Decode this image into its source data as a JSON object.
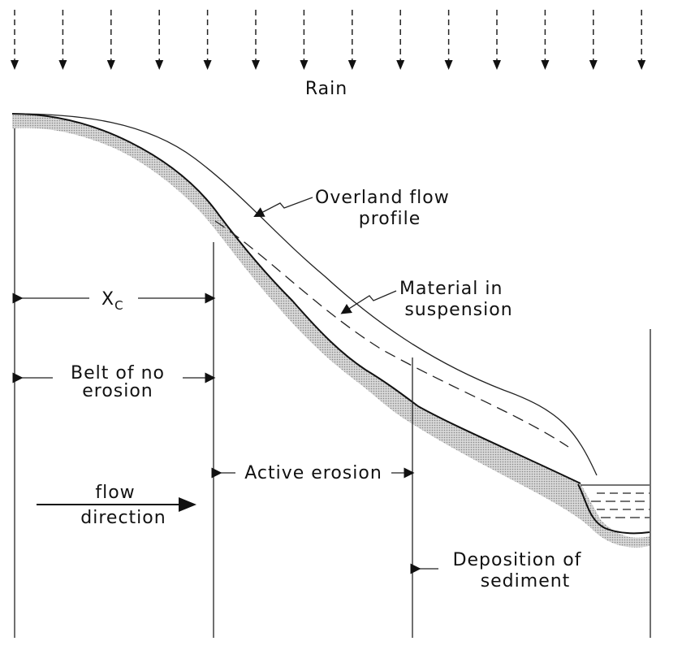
{
  "labels": {
    "rain": "Rain",
    "overland_flow": [
      "Overland flow",
      "profile"
    ],
    "material": [
      "Material in",
      "suspension"
    ],
    "xc": {
      "symbol": "X",
      "subscript": "C"
    },
    "belt": [
      "Belt of no",
      "erosion"
    ],
    "active": "Active erosion",
    "flow": [
      "flow",
      "direction"
    ],
    "deposition": [
      "Deposition of",
      "sediment"
    ]
  }
}
